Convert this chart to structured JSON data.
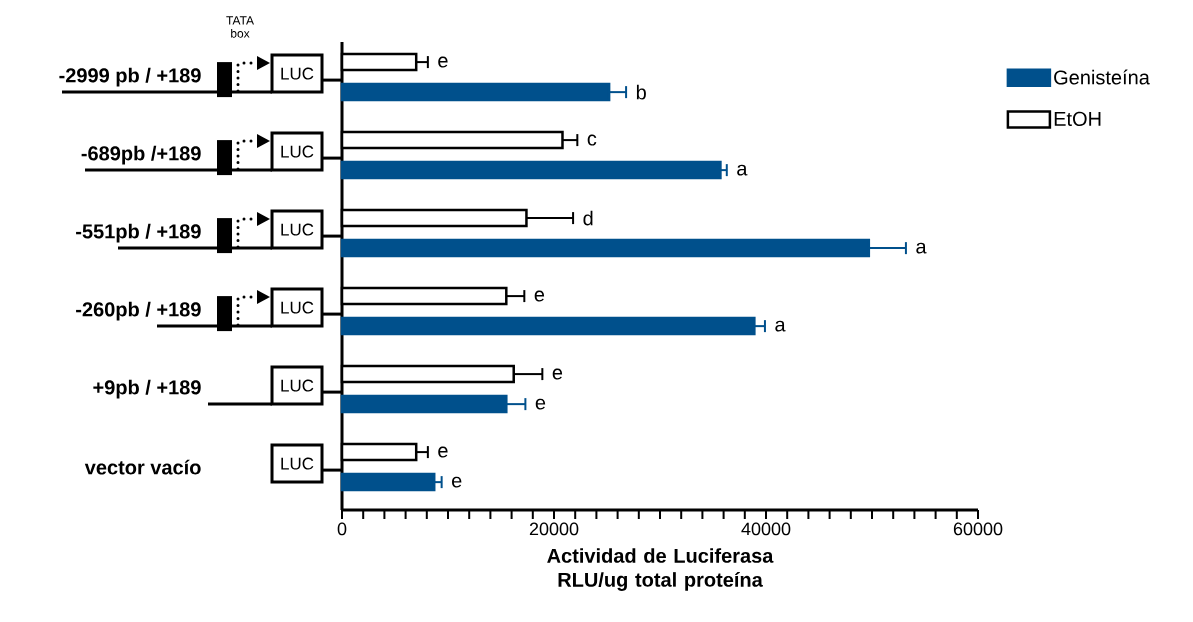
{
  "chart_data": {
    "type": "bar",
    "orientation": "horizontal",
    "categories": [
      "-2999 pb / +189",
      "-689pb /+189",
      "-551pb / +189",
      "-260pb / +189",
      "+9pb / +189",
      "vector vacío"
    ],
    "series": [
      {
        "name": "Genisteína",
        "color": "#00508c",
        "values": [
          25200,
          35700,
          49700,
          38900,
          15500,
          8700
        ],
        "errors": [
          1600,
          600,
          3500,
          1000,
          1800,
          700
        ],
        "value_labels": [
          "b",
          "a",
          "a",
          "a",
          "e",
          "e"
        ]
      },
      {
        "name": "EtOH",
        "color": "#ffffff",
        "values": [
          7000,
          20800,
          17400,
          15500,
          16200,
          7000
        ],
        "errors": [
          1100,
          1400,
          4400,
          1700,
          2700,
          1100
        ],
        "value_labels": [
          "e",
          "c",
          "d",
          "e",
          "e",
          "e"
        ]
      }
    ],
    "xlabel": "Actividad de Luciferasa RLU/ug total proteína",
    "xlim": [
      0,
      60000
    ],
    "xticks": [
      0,
      {
        "value": 2000,
        "label": null
      },
      {
        "value": 4000,
        "label": null
      },
      {
        "value": 6000,
        "label": null
      },
      {
        "value": 8000,
        "label": null
      },
      {
        "value": 10000,
        "label": null
      },
      {
        "value": 12000,
        "label": null
      },
      {
        "value": 14000,
        "label": null
      },
      {
        "value": 16000,
        "label": null
      },
      {
        "value": 18000,
        "label": null
      },
      20000,
      {
        "value": 22000,
        "label": null
      },
      {
        "value": 24000,
        "label": null
      },
      {
        "value": 26000,
        "label": null
      },
      {
        "value": 28000,
        "label": null
      },
      {
        "value": 30000,
        "label": null
      },
      {
        "value": 32000,
        "label": null
      },
      {
        "value": 34000,
        "label": null
      },
      {
        "value": 36000,
        "label": null
      },
      {
        "value": 38000,
        "label": null
      },
      40000,
      {
        "value": 42000,
        "label": null
      },
      {
        "value": 44000,
        "label": null
      },
      {
        "value": 46000,
        "label": null
      },
      {
        "value": 48000,
        "label": null
      },
      {
        "value": 50000,
        "label": null
      },
      {
        "value": 52000,
        "label": null
      },
      {
        "value": 54000,
        "label": null
      },
      {
        "value": 56000,
        "label": null
      },
      {
        "value": 58000,
        "label": null
      },
      60000
    ],
    "annotations": [
      "TATA box",
      "LUC",
      "LUC",
      "LUC",
      "LUC",
      "LUC",
      "LUC"
    ],
    "legend": "right"
  }
}
